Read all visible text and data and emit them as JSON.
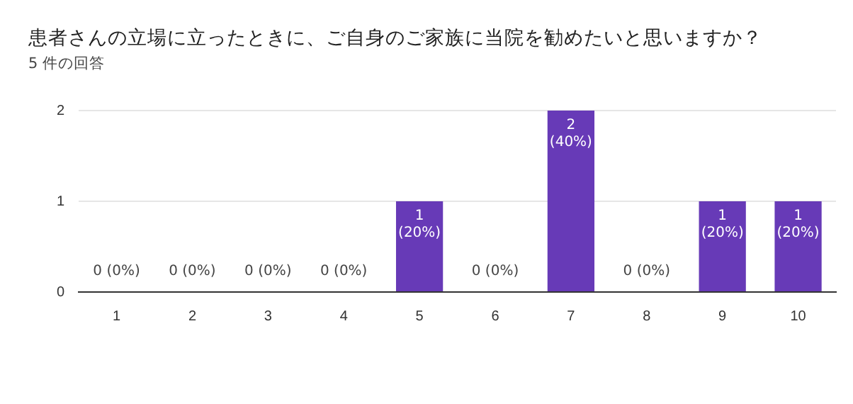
{
  "chart_data": {
    "type": "bar",
    "title": "患者さんの立場に立ったときに、ご自身のご家族に当院を勧めたいと思いますか？",
    "subtitle": "5 件の回答",
    "categories": [
      "1",
      "2",
      "3",
      "4",
      "5",
      "6",
      "7",
      "8",
      "9",
      "10"
    ],
    "values": [
      0,
      0,
      0,
      0,
      1,
      0,
      2,
      0,
      1,
      1
    ],
    "value_labels": [
      "0 (0%)",
      "0 (0%)",
      "0 (0%)",
      "0 (0%)",
      "1 (20%)",
      "0 (0%)",
      "2 (40%)",
      "0 (0%)",
      "1 (20%)",
      "1 (20%)"
    ],
    "color": "#673ab7",
    "ylim": [
      0,
      2
    ],
    "yticks": [
      0,
      1,
      2
    ],
    "grid": "y",
    "legend": false
  }
}
